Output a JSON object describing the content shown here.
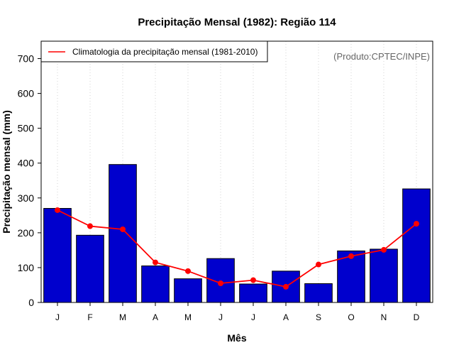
{
  "chart_data": {
    "type": "bar",
    "title": "Precipitação Mensal (1982): Região 114",
    "xlabel": "Mês",
    "ylabel": "Precipitação mensal (mm)",
    "ylim": [
      0,
      750
    ],
    "yticks": [
      0,
      100,
      200,
      300,
      400,
      500,
      600,
      700
    ],
    "ytick_labels": [
      "0",
      "100",
      "200",
      "300",
      "400",
      "500",
      "600",
      "700"
    ],
    "categories": [
      "J",
      "F",
      "M",
      "A",
      "M",
      "J",
      "J",
      "A",
      "S",
      "O",
      "N",
      "D"
    ],
    "series": [
      {
        "name": "Precipitação mensal (1982)",
        "type": "bar",
        "color": "#0000cd",
        "values": [
          270,
          193,
          396,
          105,
          68,
          126,
          53,
          90,
          54,
          148,
          153,
          326
        ]
      },
      {
        "name": "Climatologia da precipitação mensal (1981-2010)",
        "type": "line",
        "color": "#ff0000",
        "values": [
          265,
          219,
          210,
          115,
          90,
          55,
          64,
          45,
          109,
          133,
          151,
          226
        ]
      }
    ],
    "legend": {
      "position": "top-left",
      "label": "Climatologia da precipitação mensal (1981-2010)"
    },
    "credit": "(Produto:CPTEC/INPE)",
    "grid": "vertical-dotted"
  }
}
